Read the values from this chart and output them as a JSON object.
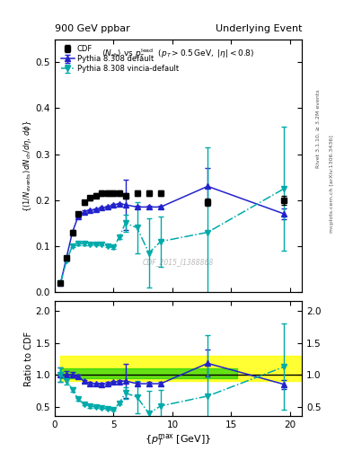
{
  "title_left": "900 GeV ppbar",
  "title_right": "Underlying Event",
  "watermark": "CDF_2015_I1388868",
  "ylabel_main": "$(1/N_\\mathrm{events}) dN_\\mathrm{ch}/d\\eta\\, d\\phi$",
  "ylabel_ratio": "Ratio to CDF",
  "xlabel": "$\\{p_T^\\mathrm{max}\\;[\\mathrm{GeV}]\\}$",
  "ylim_main": [
    0.0,
    0.55
  ],
  "ylim_ratio": [
    0.35,
    2.15
  ],
  "yticks_main": [
    0.0,
    0.1,
    0.2,
    0.3,
    0.4,
    0.5
  ],
  "yticks_ratio": [
    0.5,
    1.0,
    1.5,
    2.0
  ],
  "xlim": [
    0,
    21
  ],
  "xticks": [
    0,
    5,
    10,
    15,
    20
  ],
  "cdf_x": [
    0.5,
    1.0,
    1.5,
    2.0,
    2.5,
    3.0,
    3.5,
    4.0,
    4.5,
    5.0,
    5.5,
    6.0,
    7.0,
    8.0,
    9.0,
    13.0,
    19.5
  ],
  "cdf_y": [
    0.02,
    0.075,
    0.13,
    0.17,
    0.195,
    0.205,
    0.21,
    0.215,
    0.215,
    0.215,
    0.215,
    0.21,
    0.215,
    0.215,
    0.215,
    0.195,
    0.2
  ],
  "cdf_yerr": [
    0.002,
    0.004,
    0.005,
    0.005,
    0.005,
    0.005,
    0.005,
    0.005,
    0.005,
    0.005,
    0.005,
    0.006,
    0.006,
    0.006,
    0.006,
    0.008,
    0.01
  ],
  "py_def_x": [
    0.5,
    1.0,
    1.5,
    2.0,
    2.5,
    3.0,
    3.5,
    4.0,
    4.5,
    5.0,
    5.5,
    6.0,
    7.0,
    8.0,
    9.0,
    13.0,
    19.5
  ],
  "py_def_y": [
    0.02,
    0.075,
    0.13,
    0.165,
    0.175,
    0.178,
    0.18,
    0.183,
    0.185,
    0.19,
    0.192,
    0.19,
    0.185,
    0.185,
    0.185,
    0.23,
    0.17
  ],
  "py_def_yerr": [
    0.001,
    0.001,
    0.002,
    0.002,
    0.002,
    0.002,
    0.002,
    0.002,
    0.002,
    0.002,
    0.002,
    0.055,
    0.003,
    0.003,
    0.003,
    0.04,
    0.012
  ],
  "py_vin_x": [
    0.5,
    1.0,
    1.5,
    2.0,
    2.5,
    3.0,
    3.5,
    4.0,
    4.5,
    5.0,
    5.5,
    6.0,
    7.0,
    8.0,
    9.0,
    13.0,
    19.5
  ],
  "py_vin_y": [
    0.02,
    0.068,
    0.1,
    0.105,
    0.105,
    0.104,
    0.104,
    0.104,
    0.1,
    0.097,
    0.12,
    0.15,
    0.14,
    0.085,
    0.11,
    0.13,
    0.225
  ],
  "py_vin_yerr": [
    0.001,
    0.002,
    0.003,
    0.003,
    0.003,
    0.003,
    0.003,
    0.003,
    0.003,
    0.003,
    0.004,
    0.018,
    0.055,
    0.075,
    0.055,
    0.185,
    0.135
  ],
  "band_yellow_x1": 0.5,
  "band_yellow_x2": 21.0,
  "band_yellow_ylow": 0.9,
  "band_yellow_yhigh": 1.3,
  "band_yellow_color": "#ffff00",
  "band_yellow_alpha": 0.8,
  "band_green_x1": 0.5,
  "band_green_x2": 15.5,
  "band_green_ylow": 0.95,
  "band_green_yhigh": 1.1,
  "band_green_color": "#00cc00",
  "band_green_alpha": 0.6,
  "cdf_color": "#000000",
  "py_def_color": "#2222cc",
  "py_vin_color": "#00aaaa",
  "bg_color": "#ffffff"
}
